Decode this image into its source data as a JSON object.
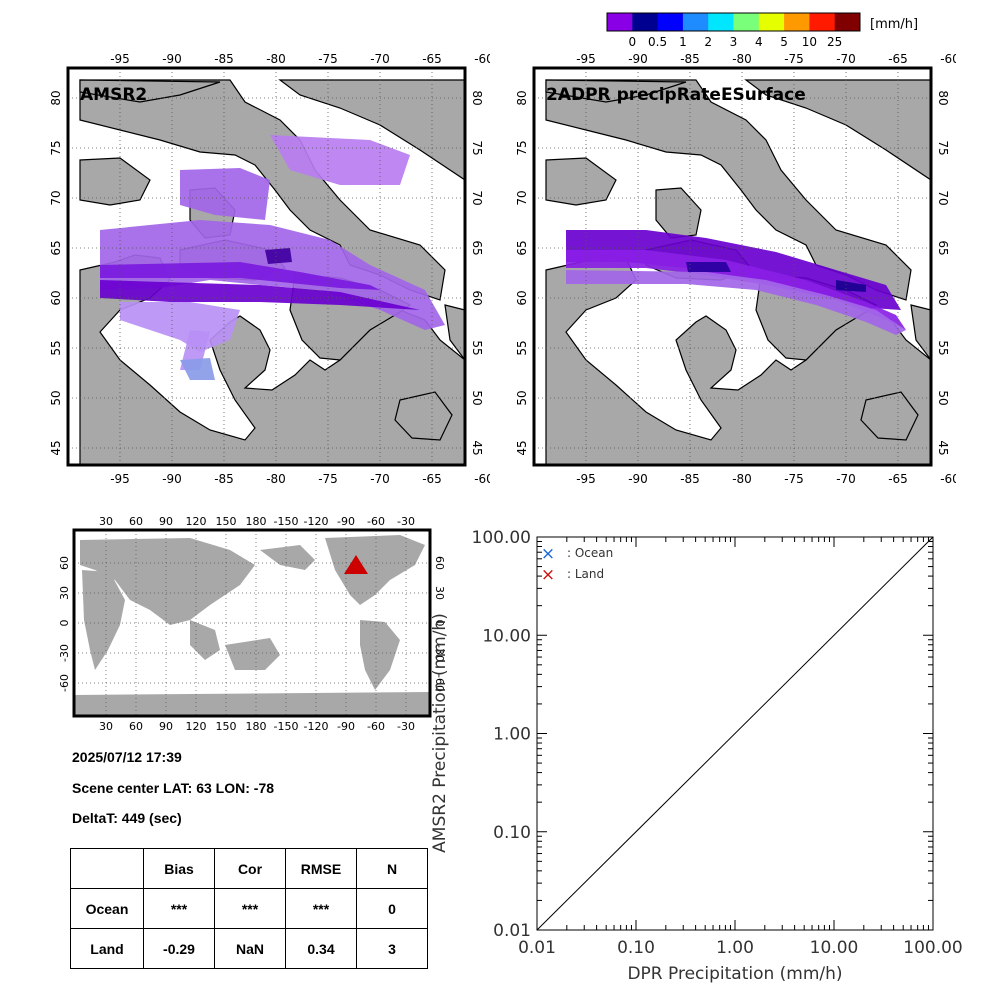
{
  "colorbar": {
    "unit": "[mm/h]",
    "ticks": [
      "0",
      "0.5",
      "1",
      "2",
      "3",
      "4",
      "5",
      "10",
      "25"
    ],
    "colors": [
      "#8a00e6",
      "#000090",
      "#0000ff",
      "#1e8cff",
      "#00e6ff",
      "#7aff7a",
      "#e6ff00",
      "#ff9900",
      "#ff1a00",
      "#800000"
    ]
  },
  "maps": [
    {
      "title": "AMSR2"
    },
    {
      "title": "2ADPR precipRateESurface"
    }
  ],
  "map_axes": {
    "lon_ticks": [
      "-95",
      "-90",
      "-85",
      "-80",
      "-75",
      "-70",
      "-65",
      "-60"
    ],
    "lat_ticks": [
      "80",
      "75",
      "70",
      "65",
      "60",
      "55",
      "50",
      "45"
    ]
  },
  "world_map": {
    "top_ticks": [
      "30",
      "60",
      "90",
      "120",
      "150",
      "180",
      "-150",
      "-120",
      "-90",
      "-60",
      "-30"
    ],
    "lat_ticks": [
      "60",
      "30",
      "0",
      "-30",
      "-60"
    ],
    "marker_color": "#cc0000"
  },
  "info": {
    "datetime": "2025/07/12 17:39",
    "scene": "Scene center LAT: 63   LON: -78",
    "delta": "DeltaT:  449 (sec)"
  },
  "stats_table": {
    "headers": [
      "",
      "Bias",
      "Cor",
      "RMSE",
      "N"
    ],
    "rows": [
      {
        "label": "Ocean",
        "bias": "***",
        "cor": "***",
        "rmse": "***",
        "n": "0"
      },
      {
        "label": "Land",
        "bias": "-0.29",
        "cor": "NaN",
        "rmse": "0.34",
        "n": "3"
      }
    ]
  },
  "chart_data": {
    "type": "scatter",
    "xlabel": "DPR Precipitation (mm/h)",
    "ylabel": "AMSR2 Precipitation (mm/h)",
    "xscale": "log",
    "yscale": "log",
    "xlim": [
      0.01,
      100
    ],
    "ylim": [
      0.01,
      100
    ],
    "x_ticks": [
      "0.01",
      "0.10",
      "1.00",
      "10.00",
      "100.00"
    ],
    "y_ticks": [
      "0.01",
      "0.10",
      "1.00",
      "10.00",
      "100.00"
    ],
    "legend": [
      {
        "symbol": "×",
        "label": ": Ocean",
        "color": "#1a66dd"
      },
      {
        "symbol": "×",
        "label": ": Land",
        "color": "#cc1111"
      }
    ],
    "legend_position": "top-left",
    "reference_line": "1:1",
    "series": []
  }
}
